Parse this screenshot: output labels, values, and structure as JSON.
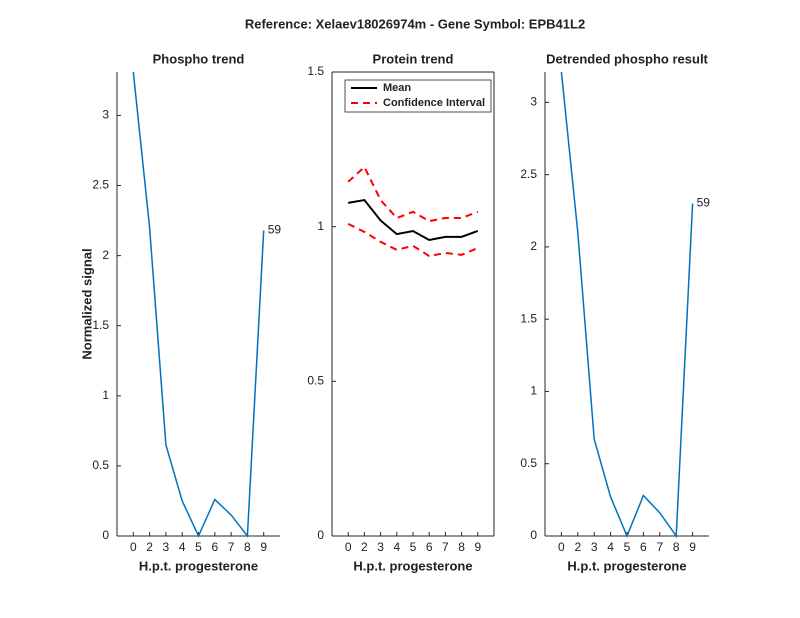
{
  "title": "Reference:  Xelaev18026974m - Gene Symbol:  EPB41L2",
  "chart_data": [
    {
      "type": "line",
      "title": "Phospho trend",
      "xlabel": "H.p.t. progesterone",
      "ylabel": "Normalized signal",
      "categories": [
        0,
        2,
        3,
        4,
        5,
        6,
        7,
        8,
        9
      ],
      "series": [
        {
          "color": "#0072bd",
          "values": [
            3.31,
            2.2,
            0.65,
            0.25,
            0,
            0.26,
            0.15,
            0,
            2.18
          ]
        }
      ],
      "annotation": "59",
      "ylim": [
        0,
        3.31
      ],
      "yticks": [
        0,
        0.5,
        1,
        1.5,
        2,
        2.5,
        3
      ]
    },
    {
      "type": "band-line",
      "title": "Protein trend",
      "xlabel": "H.p.t. progesterone",
      "categories": [
        0,
        2,
        3,
        4,
        5,
        6,
        7,
        8,
        9
      ],
      "series": [
        {
          "name": "Mean",
          "color": "#000000",
          "values": [
            1.077,
            1.086,
            1.02,
            0.976,
            0.986,
            0.957,
            0.967,
            0.967,
            0.986
          ]
        },
        {
          "name": "Confidence Interval",
          "color": "#ff0000",
          "upper": [
            1.145,
            1.193,
            1.086,
            1.028,
            1.048,
            1.018,
            1.028,
            1.028,
            1.048
          ],
          "lower": [
            1.009,
            0.983,
            0.951,
            0.925,
            0.938,
            0.905,
            0.915,
            0.909,
            0.931
          ]
        }
      ],
      "legend": "top-left",
      "ylim": [
        0,
        1.5
      ],
      "yticks": [
        0,
        0.5,
        1,
        1.5
      ]
    },
    {
      "type": "line",
      "title": "Detrended phospho result",
      "xlabel": "H.p.t. progesterone",
      "categories": [
        0,
        2,
        3,
        4,
        5,
        6,
        7,
        8,
        9
      ],
      "series": [
        {
          "color": "#0072bd",
          "values": [
            3.21,
            2.1,
            0.67,
            0.27,
            0,
            0.28,
            0.16,
            0,
            2.3
          ]
        }
      ],
      "annotation": "59",
      "ylim": [
        0,
        3.21
      ],
      "yticks": [
        0,
        0.5,
        1,
        1.5,
        2,
        2.5,
        3
      ]
    }
  ]
}
